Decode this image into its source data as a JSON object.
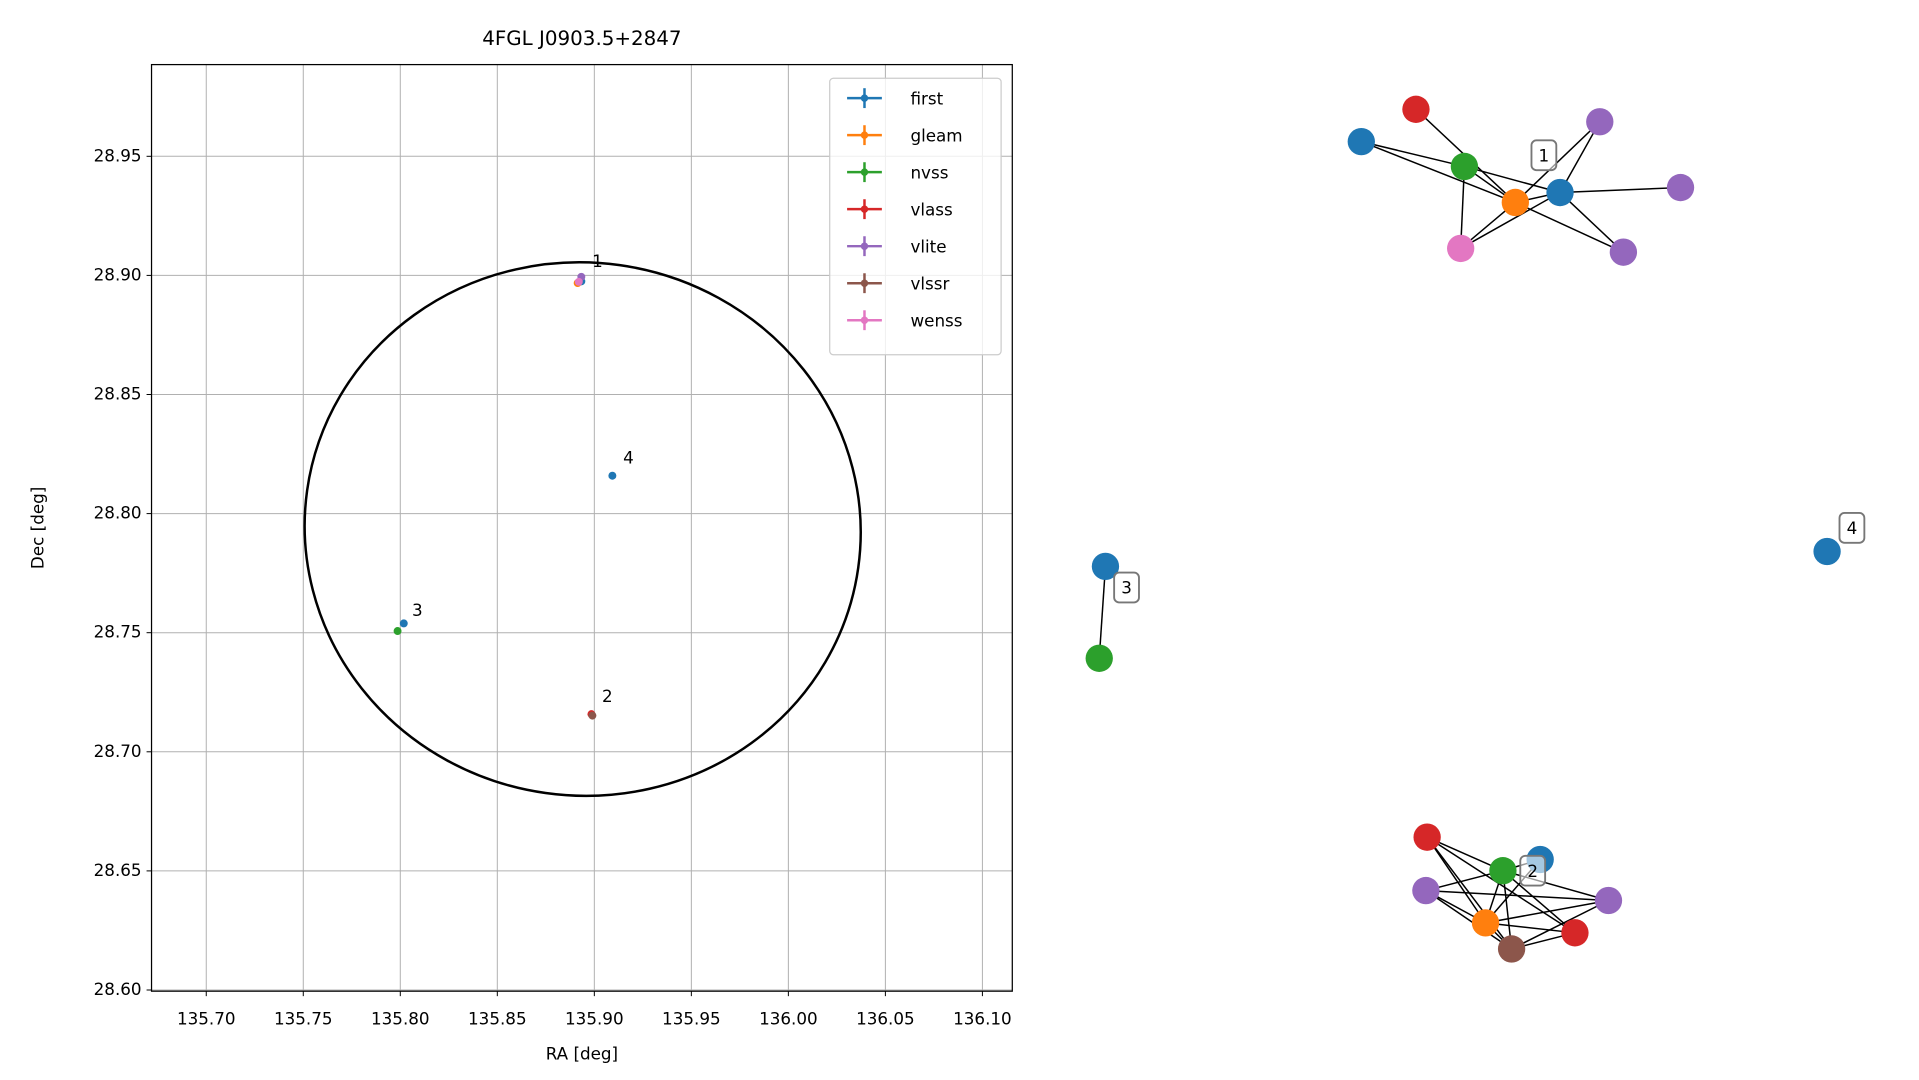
{
  "chart_data": [
    {
      "type": "scatter",
      "title": "4FGL J0903.5+2847",
      "x_label": "RA [deg]",
      "y_label": "Dec [deg]",
      "xlim": [
        135.6718,
        136.1154
      ],
      "ylim": [
        28.5995,
        28.9885
      ],
      "xticks": [
        {
          "value": 135.7,
          "label": "135.70"
        },
        {
          "value": 135.75,
          "label": "135.75"
        },
        {
          "value": 135.8,
          "label": "135.80"
        },
        {
          "value": 135.85,
          "label": "135.85"
        },
        {
          "value": 135.9,
          "label": "135.90"
        },
        {
          "value": 135.95,
          "label": "135.95"
        },
        {
          "value": 136.0,
          "label": "136.00"
        },
        {
          "value": 136.05,
          "label": "136.05"
        },
        {
          "value": 136.1,
          "label": "136.10"
        }
      ],
      "yticks": [
        {
          "value": 28.6,
          "label": "28.60"
        },
        {
          "value": 28.65,
          "label": "28.65"
        },
        {
          "value": 28.7,
          "label": "28.70"
        },
        {
          "value": 28.75,
          "label": "28.75"
        },
        {
          "value": 28.8,
          "label": "28.80"
        },
        {
          "value": 28.85,
          "label": "28.85"
        },
        {
          "value": 28.9,
          "label": "28.90"
        },
        {
          "value": 28.95,
          "label": "28.95"
        }
      ],
      "grid": true,
      "legend": "upper right",
      "series": [
        {
          "name": "first",
          "color": "#1f77b4",
          "x": [
            135.8933,
            135.9093,
            135.8018
          ],
          "values": [
            28.8975,
            28.8159,
            28.7539
          ]
        },
        {
          "name": "gleam",
          "color": "#ff7f0e",
          "x": [
            135.8914
          ],
          "values": [
            28.8968
          ]
        },
        {
          "name": "nvss",
          "color": "#2ca02c",
          "x": [
            135.7986
          ],
          "values": [
            28.7507
          ]
        },
        {
          "name": "vlass",
          "color": "#d62728",
          "x": [
            135.8985
          ],
          "values": [
            28.7158
          ]
        },
        {
          "name": "vlite",
          "color": "#9467bd",
          "x": [
            135.8933
          ],
          "values": [
            28.8994
          ]
        },
        {
          "name": "vlssr",
          "color": "#8c564b",
          "x": [
            135.899
          ],
          "values": [
            28.7152
          ]
        },
        {
          "name": "wenss",
          "color": "#e377c2",
          "x": [
            135.892
          ],
          "values": [
            28.8973
          ]
        }
      ],
      "ellipse": {
        "center_x": 135.894,
        "center_y": 28.7935,
        "width": 0.2868,
        "height": 0.2238,
        "angle": 8,
        "color": "#000000"
      },
      "annotations": [
        {
          "text": "1",
          "x": 135.9016,
          "y": 28.9057
        },
        {
          "text": "4",
          "x": 135.9176,
          "y": 28.8232
        },
        {
          "text": "3",
          "x": 135.8088,
          "y": 28.7591
        },
        {
          "text": "2",
          "x": 135.9067,
          "y": 28.7231
        }
      ]
    },
    {
      "type": "network",
      "labels": [
        "1",
        "2",
        "3",
        "4"
      ]
    }
  ]
}
